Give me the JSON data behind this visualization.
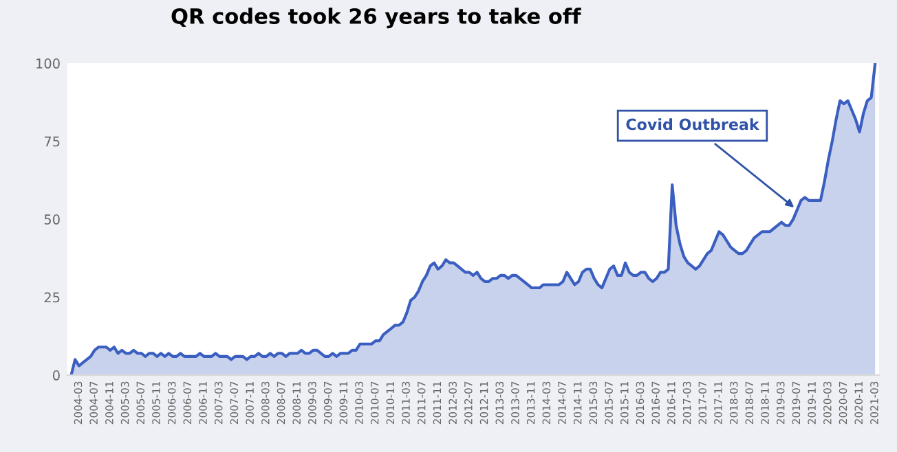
{
  "chart_data": {
    "type": "area",
    "title": "QR codes took 26 years to take off",
    "categories": [
      null,
      null,
      "2004-03",
      null,
      null,
      null,
      "2004-07",
      null,
      null,
      null,
      "2004-11",
      null,
      null,
      null,
      "2005-03",
      null,
      null,
      null,
      "2005-07",
      null,
      null,
      null,
      "2005-11",
      null,
      null,
      null,
      "2006-03",
      null,
      null,
      null,
      "2006-07",
      null,
      null,
      null,
      "2006-11",
      null,
      null,
      null,
      "2007-03",
      null,
      null,
      null,
      "2007-07",
      null,
      null,
      null,
      "2007-11",
      null,
      null,
      null,
      "2008-03",
      null,
      null,
      null,
      "2008-07",
      null,
      null,
      null,
      "2008-11",
      null,
      null,
      null,
      "2009-03",
      null,
      null,
      null,
      "2009-07",
      null,
      null,
      null,
      "2009-11",
      null,
      null,
      null,
      "2010-03",
      null,
      null,
      null,
      "2010-07",
      null,
      null,
      null,
      "2010-11",
      null,
      null,
      null,
      "2011-03",
      null,
      null,
      null,
      "2011-07",
      null,
      null,
      null,
      "2011-11",
      null,
      null,
      null,
      "2012-03",
      null,
      null,
      null,
      "2012-07",
      null,
      null,
      null,
      "2012-11",
      null,
      null,
      null,
      "2013-03",
      null,
      null,
      null,
      "2013-07",
      null,
      null,
      null,
      "2013-11",
      null,
      null,
      null,
      "2014-03",
      null,
      null,
      null,
      "2014-07",
      null,
      null,
      null,
      "2014-11",
      null,
      null,
      null,
      "2015-03",
      null,
      null,
      null,
      "2015-07",
      null,
      null,
      null,
      "2015-11",
      null,
      null,
      null,
      "2016-03",
      null,
      null,
      null,
      "2016-07",
      null,
      null,
      null,
      "2016-11",
      null,
      null,
      null,
      "2017-03",
      null,
      null,
      null,
      "2017-07",
      null,
      null,
      null,
      "2017-11",
      null,
      null,
      null,
      "2018-03",
      null,
      null,
      null,
      "2018-07",
      null,
      null,
      null,
      "2018-11",
      null,
      null,
      null,
      "2019-03",
      null,
      null,
      null,
      "2019-07",
      null,
      null,
      null,
      "2019-11",
      null,
      null,
      null,
      "2020-03",
      null,
      null,
      null,
      "2020-07",
      null,
      null,
      null,
      "2020-11",
      null,
      null,
      null,
      "2021-03"
    ],
    "series": [
      {
        "color": "#3b5fc0",
        "values": [
          0,
          5,
          3,
          4,
          5,
          6,
          8,
          9,
          9,
          9,
          8,
          9,
          7,
          8,
          7,
          7,
          8,
          7,
          7,
          6,
          7,
          7,
          6,
          7,
          6,
          7,
          6,
          6,
          7,
          6,
          6,
          6,
          6,
          7,
          6,
          6,
          6,
          7,
          6,
          6,
          6,
          5,
          6,
          6,
          6,
          5,
          6,
          6,
          7,
          6,
          6,
          7,
          6,
          7,
          7,
          6,
          7,
          7,
          7,
          8,
          7,
          7,
          8,
          8,
          7,
          6,
          6,
          7,
          6,
          7,
          7,
          7,
          8,
          8,
          10,
          10,
          10,
          10,
          11,
          11,
          13,
          14,
          15,
          16,
          16,
          17,
          20,
          24,
          25,
          27,
          30,
          32,
          35,
          36,
          34,
          35,
          37,
          36,
          36,
          35,
          34,
          33,
          33,
          32,
          33,
          31,
          30,
          30,
          31,
          31,
          32,
          32,
          31,
          32,
          32,
          31,
          30,
          29,
          28,
          28,
          28,
          29,
          29,
          29,
          29,
          29,
          30,
          33,
          31,
          29,
          30,
          33,
          34,
          34,
          31,
          29,
          28,
          31,
          34,
          35,
          32,
          32,
          36,
          33,
          32,
          32,
          33,
          33,
          31,
          30,
          31,
          33,
          33,
          34,
          61,
          48,
          42,
          38,
          36,
          35,
          34,
          35,
          37,
          39,
          40,
          43,
          46,
          45,
          43,
          41,
          40,
          39,
          39,
          40,
          42,
          44,
          45,
          46,
          46,
          46,
          47,
          48,
          49,
          48,
          48,
          50,
          53,
          56,
          57,
          56,
          56,
          56,
          56,
          62,
          69,
          75,
          82,
          88,
          87,
          88,
          85,
          82,
          78,
          84,
          88,
          89,
          100
        ]
      }
    ],
    "ylim": [
      0,
      100
    ],
    "yticks": [
      0,
      25,
      50,
      75,
      100
    ],
    "grid": false,
    "legend": false,
    "annotations": [
      {
        "text": "Covid Outbreak",
        "x": "2019-07",
        "y": 53
      }
    ]
  }
}
